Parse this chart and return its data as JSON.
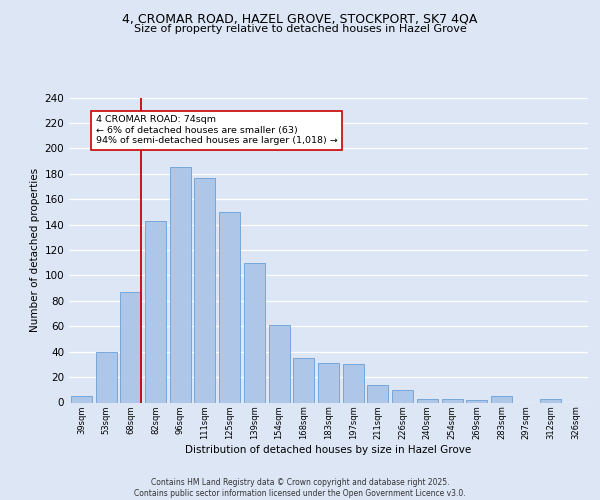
{
  "title_line1": "4, CROMAR ROAD, HAZEL GROVE, STOCKPORT, SK7 4QA",
  "title_line2": "Size of property relative to detached houses in Hazel Grove",
  "xlabel": "Distribution of detached houses by size in Hazel Grove",
  "ylabel": "Number of detached properties",
  "categories": [
    "39sqm",
    "53sqm",
    "68sqm",
    "82sqm",
    "96sqm",
    "111sqm",
    "125sqm",
    "139sqm",
    "154sqm",
    "168sqm",
    "183sqm",
    "197sqm",
    "211sqm",
    "226sqm",
    "240sqm",
    "254sqm",
    "269sqm",
    "283sqm",
    "297sqm",
    "312sqm",
    "326sqm"
  ],
  "values": [
    5,
    40,
    87,
    143,
    185,
    177,
    150,
    110,
    61,
    35,
    31,
    30,
    14,
    10,
    3,
    3,
    2,
    5,
    0,
    3,
    0
  ],
  "bar_color": "#aec6e8",
  "bar_edge_color": "#6a9fd8",
  "bg_color": "#dce6f5",
  "fig_bg_color": "#dce6f5",
  "grid_color": "#ffffff",
  "vline_color": "#cc0000",
  "vline_pos": 2.43,
  "annotation_text": "4 CROMAR ROAD: 74sqm\n← 6% of detached houses are smaller (63)\n94% of semi-detached houses are larger (1,018) →",
  "annotation_box_facecolor": "#ffffff",
  "annotation_box_edgecolor": "#cc0000",
  "footer_text": "Contains HM Land Registry data © Crown copyright and database right 2025.\nContains public sector information licensed under the Open Government Licence v3.0.",
  "ylim": [
    0,
    240
  ],
  "yticks": [
    0,
    20,
    40,
    60,
    80,
    100,
    120,
    140,
    160,
    180,
    200,
    220,
    240
  ]
}
